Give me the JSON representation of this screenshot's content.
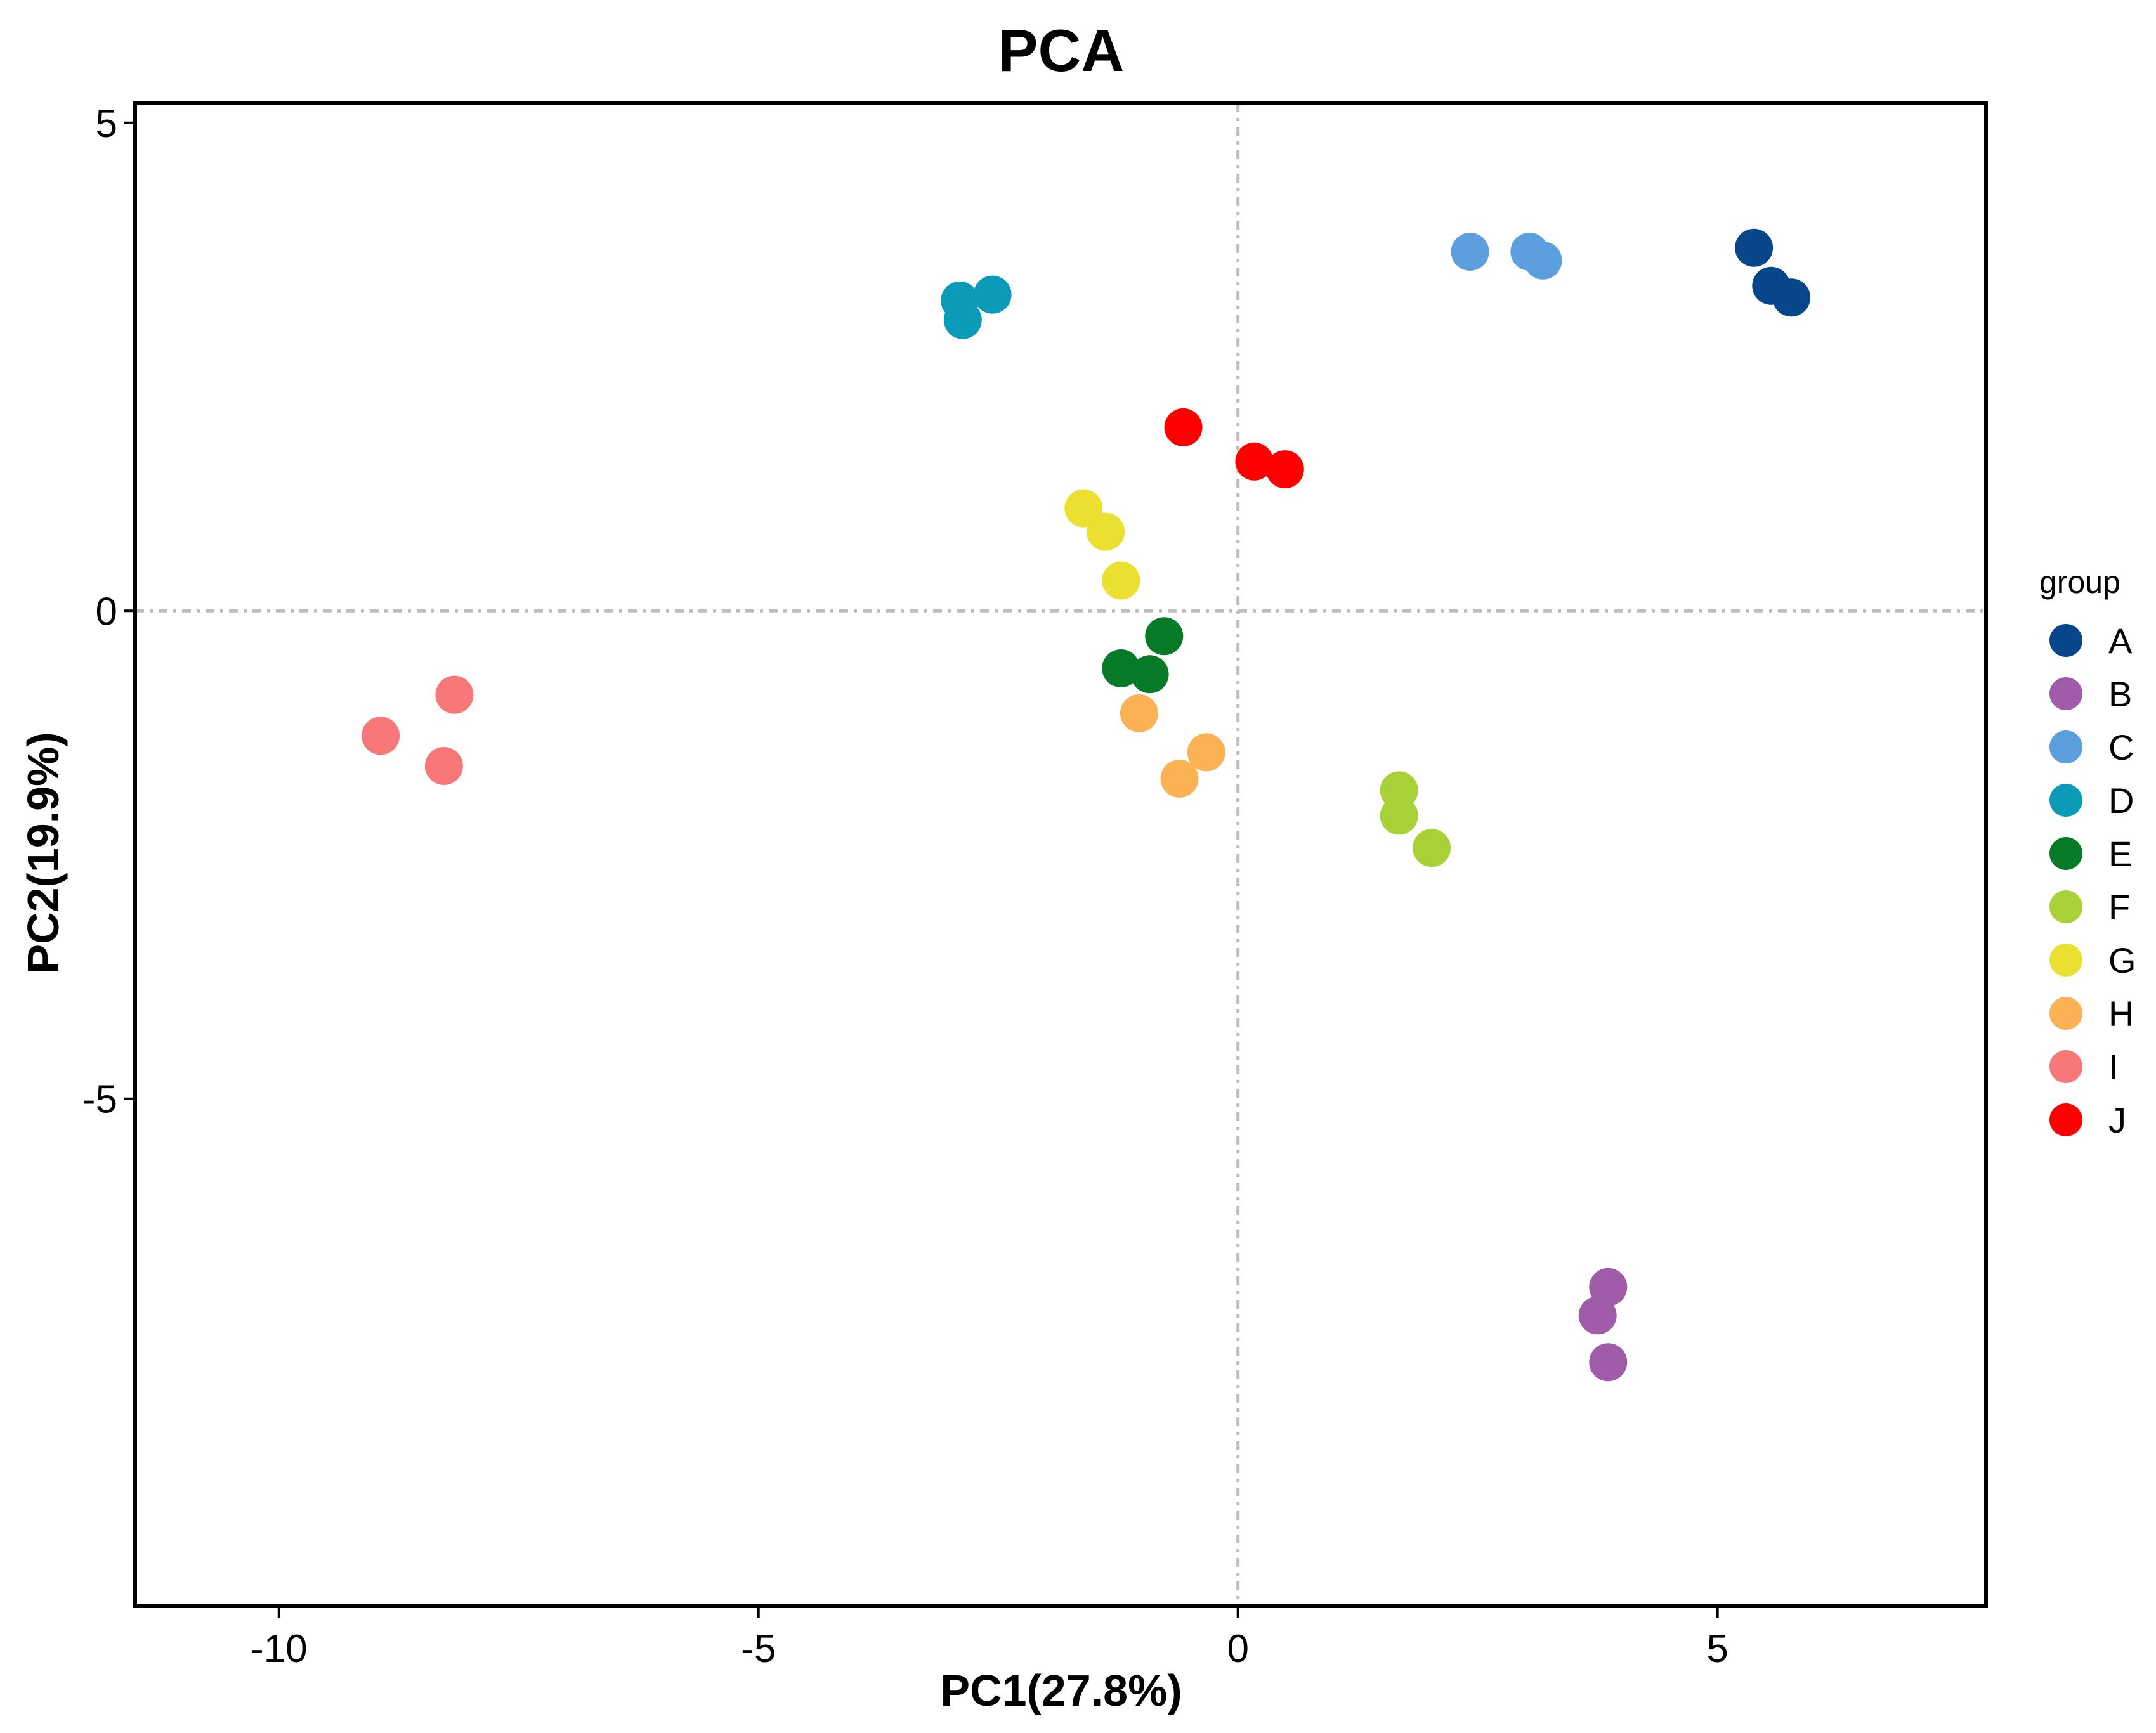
{
  "chart_data": {
    "type": "scatter",
    "title": "PCA",
    "xlabel": "PC1(27.8%)",
    "ylabel": "PC2(19.9%)",
    "xlim": [
      -11.5,
      7.8
    ],
    "ylim": [
      -10.2,
      5.2
    ],
    "xticks": [
      -10,
      -5,
      0,
      5
    ],
    "yticks": [
      5,
      0,
      -5
    ],
    "xtick_labels": [
      "-10",
      "-5",
      "0",
      "5"
    ],
    "ytick_labels": [
      "5",
      "0",
      "-5"
    ],
    "grid": false,
    "reference_lines": {
      "x": 0,
      "y": 0,
      "style": "dot-dash",
      "color": "#bebebe"
    },
    "legend": {
      "title": "group",
      "position": "right"
    },
    "series": [
      {
        "name": "A",
        "color": "#08468C",
        "x": [
          5.38,
          5.56,
          5.77
        ],
        "y": [
          3.72,
          3.33,
          3.21
        ]
      },
      {
        "name": "B",
        "color": "#A05CA8",
        "x": [
          3.86,
          3.75,
          3.86
        ],
        "y": [
          -6.93,
          -7.22,
          -7.7
        ]
      },
      {
        "name": "C",
        "color": "#5C9FDF",
        "x": [
          2.42,
          3.04,
          3.18
        ],
        "y": [
          3.68,
          3.68,
          3.59
        ]
      },
      {
        "name": "D",
        "color": "#0B9AB7",
        "x": [
          -2.9,
          -2.56,
          -2.87
        ],
        "y": [
          3.18,
          3.24,
          2.98
        ]
      },
      {
        "name": "E",
        "color": "#077A27",
        "x": [
          -0.77,
          -1.22,
          -0.92
        ],
        "y": [
          -0.26,
          -0.59,
          -0.65
        ]
      },
      {
        "name": "F",
        "color": "#A8D137",
        "x": [
          1.68,
          1.68,
          2.02
        ],
        "y": [
          -1.84,
          -2.1,
          -2.43
        ]
      },
      {
        "name": "G",
        "color": "#EBDF32",
        "x": [
          -1.61,
          -1.38,
          -1.22
        ],
        "y": [
          1.05,
          0.81,
          0.31
        ]
      },
      {
        "name": "H",
        "color": "#FBB254",
        "x": [
          -1.03,
          -0.33,
          -0.61
        ],
        "y": [
          -1.05,
          -1.45,
          -1.72
        ]
      },
      {
        "name": "I",
        "color": "#F8787A",
        "x": [
          -8.17,
          -8.94,
          -8.28
        ],
        "y": [
          -0.86,
          -1.28,
          -1.59
        ]
      },
      {
        "name": "J",
        "color": "#FF0000",
        "x": [
          -0.57,
          0.17,
          0.49
        ],
        "y": [
          1.88,
          1.53,
          1.45
        ]
      }
    ]
  }
}
